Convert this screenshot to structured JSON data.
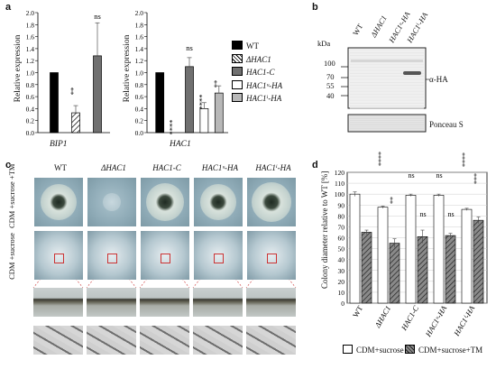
{
  "panels": {
    "a": "a",
    "b": "b",
    "c": "c",
    "d": "d"
  },
  "panel_a": {
    "ylabel_left": "Relative expression",
    "ylabel_right": "Relative expression",
    "yticks": [
      "0.0",
      "0.2",
      "0.4",
      "0.6",
      "0.8",
      "1.0",
      "1.2",
      "1.4",
      "1.6",
      "1.8",
      "2.0"
    ],
    "xlabel_left": "BIP1",
    "xlabel_right": "HAC1",
    "sig_left": [
      "**",
      "ns"
    ],
    "sig_right": [
      "****",
      "ns",
      "****",
      "**"
    ],
    "legend": [
      "WT",
      "ΔHAC1",
      "HAC1-C",
      "HAC1ᵘ-HA",
      "HAC1ⁱ-HA"
    ]
  },
  "panel_b": {
    "lanes": [
      "WT",
      "ΔHAC1",
      "HAC1ᵘ-HA",
      "HAC1ⁱ-HA"
    ],
    "kda": "kDa",
    "markers": [
      "100",
      "70",
      "55",
      "40"
    ],
    "blot_label": "α-HA",
    "stain_label": "Ponceau S"
  },
  "panel_c": {
    "columns": [
      "WT",
      "ΔHAC1",
      "HAC1-C",
      "HAC1ᵘ-HA",
      "HAC1ⁱ-HA"
    ],
    "row1": "CDM +sucrose +TM",
    "row2": "CDM +sucrose"
  },
  "panel_d": {
    "ylabel": "Colony diameter relative to WT [%]",
    "yticks": [
      "0",
      "10",
      "20",
      "30",
      "40",
      "50",
      "60",
      "70",
      "80",
      "90",
      "100",
      "110",
      "120"
    ],
    "categories": [
      "WT",
      "ΔHAC1",
      "HAC1-C",
      "HAC1ᵘ-HA",
      "HAC1ⁱ-HA"
    ],
    "sig_top": [
      "****",
      "ns",
      "ns",
      "****"
    ],
    "sig_bottom": [
      "**",
      "ns",
      "ns",
      "***"
    ],
    "legend": [
      "CDM+sucrose",
      "CDM+sucrose+TM"
    ]
  },
  "chart_data": [
    {
      "type": "bar",
      "title": "",
      "xlabel": "BIP1",
      "ylabel": "Relative expression",
      "ylim": [
        0,
        2.0
      ],
      "categories": [
        "WT",
        "ΔHAC1",
        "HAC1-C"
      ],
      "values": [
        1.0,
        0.33,
        1.28
      ],
      "errors": [
        0,
        0.12,
        0.55
      ]
    },
    {
      "type": "bar",
      "title": "",
      "xlabel": "HAC1",
      "ylabel": "Relative expression",
      "ylim": [
        0,
        2.0
      ],
      "categories": [
        "WT",
        "ΔHAC1",
        "HAC1-C",
        "HAC1ᵘ-HA",
        "HAC1ⁱ-HA"
      ],
      "values": [
        1.0,
        0.0,
        1.1,
        0.4,
        0.66
      ],
      "errors": [
        0,
        0,
        0.15,
        0.1,
        0.12
      ]
    },
    {
      "type": "bar",
      "title": "",
      "xlabel": "",
      "ylabel": "Colony diameter relative to WT [%]",
      "ylim": [
        0,
        120
      ],
      "categories": [
        "WT",
        "ΔHAC1",
        "HAC1-C",
        "HAC1ᵘ-HA",
        "HAC1ⁱ-HA"
      ],
      "series": [
        {
          "name": "CDM+sucrose",
          "values": [
            100,
            88,
            99,
            99,
            86
          ],
          "errors": [
            2,
            1,
            1,
            1,
            1
          ]
        },
        {
          "name": "CDM+sucrose+TM",
          "values": [
            65,
            55,
            61,
            62,
            76
          ],
          "errors": [
            2,
            4,
            6,
            2,
            3
          ]
        }
      ]
    }
  ],
  "colors": {
    "black": "#000000",
    "grey_dark": "#707070",
    "grey_light": "#b8b8b8",
    "white": "#ffffff"
  }
}
